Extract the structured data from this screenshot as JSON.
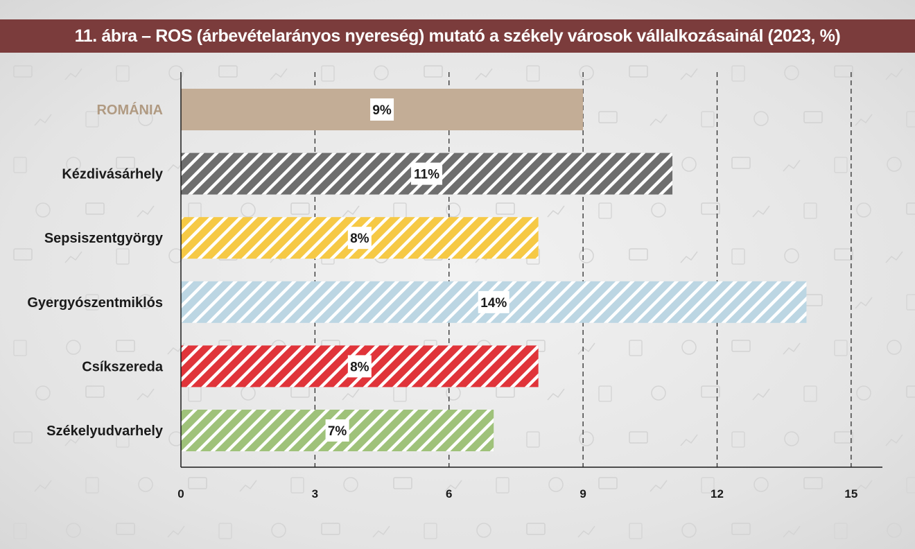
{
  "chart_data": {
    "type": "bar",
    "orientation": "horizontal",
    "title": "11. ábra – ROS (árbevételarányos nyereség) mutató a székely városok vállalkozásainál (2023, %)",
    "categories": [
      "ROMÁNIA",
      "Kézdivásárhely",
      "Sepsiszentgyörgy",
      "Gyergyószentmiklós",
      "Csíkszereda",
      "Székelyudvarhely"
    ],
    "values": [
      9,
      11,
      8,
      14,
      8,
      7
    ],
    "value_labels": [
      "9%",
      "11%",
      "8%",
      "14%",
      "8%",
      "7%"
    ],
    "colors": [
      "#c3ad96",
      "#6e6e6e",
      "#f6c945",
      "#bcd6e3",
      "#e0343a",
      "#9fc27a"
    ],
    "hatched": [
      false,
      true,
      true,
      true,
      true,
      true
    ],
    "label_colors": [
      "#b09a82",
      "#1a1a1a",
      "#1a1a1a",
      "#1a1a1a",
      "#1a1a1a",
      "#1a1a1a"
    ],
    "xlim": [
      0,
      15.7
    ],
    "xticks": [
      0,
      3,
      6,
      9,
      12,
      15
    ],
    "xtick_labels": [
      "0",
      "3",
      "6",
      "9",
      "12",
      "15"
    ],
    "grid": "vertical dashed"
  }
}
